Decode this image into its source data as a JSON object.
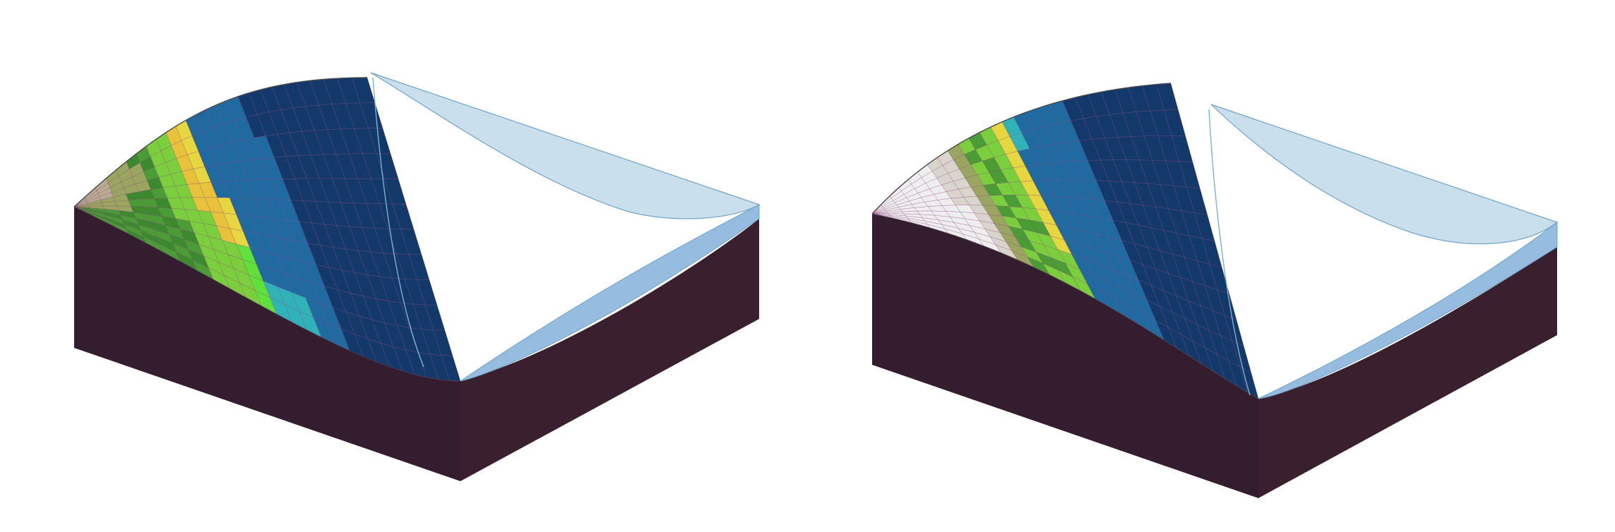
{
  "palette": {
    "block_front": "#331d2e",
    "block_side": "#3a1f2f",
    "water_surface": "#c6dcea",
    "water_edge": "#6fa3c8",
    "grid_line": "#8a3f7a",
    "deep_water": "#12396a",
    "mid_water": "#1f6aa0",
    "shallow_water": "#2fb3b8",
    "sand": "#e6d640",
    "sand_dark": "#e8c23a",
    "lime": "#7ccf3c",
    "bright_lime": "#5fe03a",
    "grass": "#4a9c34",
    "forest": "#3b8a2e",
    "olive": "#9aa660",
    "rock": "#b8ab92",
    "snow": "#eeeeee",
    "snow_shade": "#d9d4cc"
  },
  "panels": [
    {
      "name": "left-block",
      "terrain": "green-upland",
      "icon": "terrain-block-icon"
    },
    {
      "name": "right-block",
      "terrain": "snow-capped",
      "icon": "terrain-block-icon"
    }
  ]
}
